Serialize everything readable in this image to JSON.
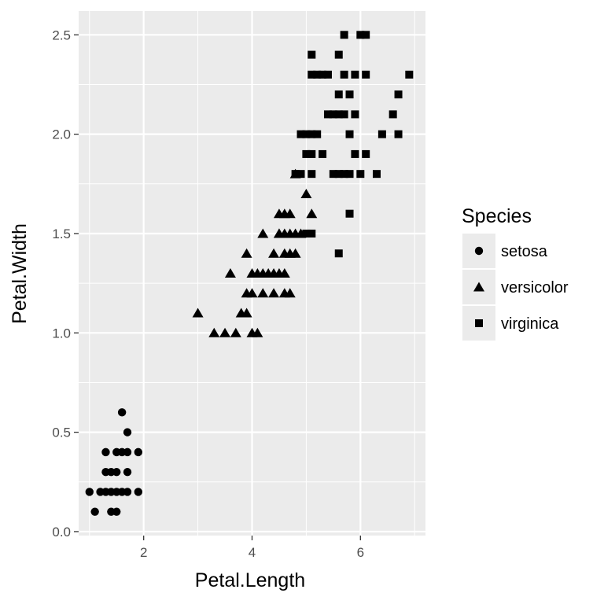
{
  "chart_data": {
    "type": "scatter",
    "xlabel": "Petal.Length",
    "ylabel": "Petal.Width",
    "xlim": [
      0.8,
      7.2
    ],
    "ylim": [
      -0.02,
      2.62
    ],
    "xticks": [
      2,
      4,
      6
    ],
    "xtick_labels": [
      "2",
      "4",
      "6"
    ],
    "yticks": [
      0.0,
      0.5,
      1.0,
      1.5,
      2.0,
      2.5
    ],
    "ytick_labels": [
      "0.0",
      "0.5",
      "1.0",
      "1.5",
      "2.0",
      "2.5"
    ],
    "panel_background": "#ebebeb",
    "grid_color": "#ffffff",
    "grid": true,
    "legend": {
      "title": "Species",
      "placement": "right"
    },
    "series": [
      {
        "name": "setosa",
        "shape": "circle",
        "color": "#000000",
        "points": [
          [
            1.0,
            0.2
          ],
          [
            1.1,
            0.1
          ],
          [
            1.2,
            0.2
          ],
          [
            1.3,
            0.2
          ],
          [
            1.3,
            0.3
          ],
          [
            1.3,
            0.4
          ],
          [
            1.4,
            0.1
          ],
          [
            1.4,
            0.2
          ],
          [
            1.4,
            0.3
          ],
          [
            1.5,
            0.1
          ],
          [
            1.5,
            0.2
          ],
          [
            1.5,
            0.3
          ],
          [
            1.5,
            0.4
          ],
          [
            1.6,
            0.2
          ],
          [
            1.6,
            0.4
          ],
          [
            1.6,
            0.6
          ],
          [
            1.7,
            0.2
          ],
          [
            1.7,
            0.3
          ],
          [
            1.7,
            0.4
          ],
          [
            1.7,
            0.5
          ],
          [
            1.9,
            0.2
          ],
          [
            1.9,
            0.4
          ]
        ]
      },
      {
        "name": "versicolor",
        "shape": "triangle",
        "color": "#000000",
        "points": [
          [
            3.0,
            1.1
          ],
          [
            3.3,
            1.0
          ],
          [
            3.5,
            1.0
          ],
          [
            3.6,
            1.3
          ],
          [
            3.7,
            1.0
          ],
          [
            3.8,
            1.1
          ],
          [
            3.9,
            1.1
          ],
          [
            3.9,
            1.2
          ],
          [
            3.9,
            1.4
          ],
          [
            4.0,
            1.0
          ],
          [
            4.0,
            1.2
          ],
          [
            4.0,
            1.3
          ],
          [
            4.1,
            1.0
          ],
          [
            4.1,
            1.3
          ],
          [
            4.2,
            1.2
          ],
          [
            4.2,
            1.3
          ],
          [
            4.2,
            1.5
          ],
          [
            4.3,
            1.3
          ],
          [
            4.4,
            1.2
          ],
          [
            4.4,
            1.3
          ],
          [
            4.4,
            1.4
          ],
          [
            4.5,
            1.3
          ],
          [
            4.5,
            1.5
          ],
          [
            4.6,
            1.2
          ],
          [
            4.6,
            1.3
          ],
          [
            4.6,
            1.4
          ],
          [
            4.6,
            1.5
          ],
          [
            4.7,
            1.2
          ],
          [
            4.7,
            1.4
          ],
          [
            4.7,
            1.5
          ],
          [
            4.7,
            1.6
          ],
          [
            4.8,
            1.4
          ],
          [
            4.8,
            1.8
          ],
          [
            4.9,
            1.5
          ],
          [
            5.0,
            1.7
          ],
          [
            5.1,
            1.6
          ],
          [
            4.5,
            1.6
          ],
          [
            4.6,
            1.6
          ],
          [
            4.5,
            1.5
          ],
          [
            4.8,
            1.5
          ]
        ]
      },
      {
        "name": "virginica",
        "shape": "square",
        "color": "#000000",
        "points": [
          [
            4.8,
            1.8
          ],
          [
            4.9,
            1.8
          ],
          [
            4.9,
            2.0
          ],
          [
            5.0,
            1.5
          ],
          [
            5.0,
            1.9
          ],
          [
            5.0,
            2.0
          ],
          [
            5.1,
            1.5
          ],
          [
            5.1,
            1.8
          ],
          [
            5.1,
            1.9
          ],
          [
            5.1,
            2.0
          ],
          [
            5.1,
            2.3
          ],
          [
            5.1,
            2.4
          ],
          [
            5.2,
            2.0
          ],
          [
            5.2,
            2.3
          ],
          [
            5.3,
            1.9
          ],
          [
            5.3,
            2.3
          ],
          [
            5.4,
            2.1
          ],
          [
            5.4,
            2.3
          ],
          [
            5.5,
            1.8
          ],
          [
            5.5,
            2.1
          ],
          [
            5.6,
            1.4
          ],
          [
            5.6,
            1.8
          ],
          [
            5.6,
            2.1
          ],
          [
            5.6,
            2.2
          ],
          [
            5.6,
            2.4
          ],
          [
            5.7,
            1.8
          ],
          [
            5.7,
            2.1
          ],
          [
            5.7,
            2.3
          ],
          [
            5.7,
            2.5
          ],
          [
            5.8,
            1.6
          ],
          [
            5.8,
            1.8
          ],
          [
            5.8,
            2.2
          ],
          [
            5.9,
            2.1
          ],
          [
            5.9,
            2.3
          ],
          [
            6.0,
            1.8
          ],
          [
            6.0,
            2.5
          ],
          [
            6.1,
            1.9
          ],
          [
            6.1,
            2.3
          ],
          [
            6.1,
            2.5
          ],
          [
            6.3,
            1.8
          ],
          [
            6.4,
            2.0
          ],
          [
            6.6,
            2.1
          ],
          [
            6.7,
            2.0
          ],
          [
            6.7,
            2.2
          ],
          [
            6.9,
            2.3
          ],
          [
            5.9,
            1.9
          ],
          [
            5.8,
            2.0
          ]
        ]
      }
    ]
  }
}
